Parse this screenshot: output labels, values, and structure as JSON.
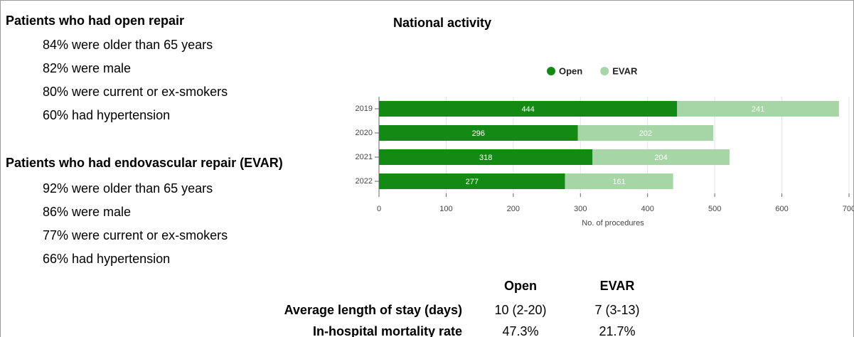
{
  "open_repair": {
    "heading": "Patients who had open repair",
    "items": [
      "84% were older than 65 years",
      "82% were male",
      "80% were current or ex-smokers",
      "60% had hypertension"
    ]
  },
  "evar_repair": {
    "heading": "Patients who had endovascular repair (EVAR)",
    "items": [
      "92% were older than 65 years",
      "86% were male",
      "77% were current or ex-smokers",
      "66% had hypertension"
    ]
  },
  "chart_data": {
    "type": "stacked_barh",
    "title": "National activity",
    "categories": [
      "2019",
      "2020",
      "2021",
      "2022"
    ],
    "series": [
      {
        "name": "Open",
        "color": "#138a13",
        "values": [
          444,
          296,
          318,
          277
        ]
      },
      {
        "name": "EVAR",
        "color": "#a6d5a6",
        "values": [
          241,
          202,
          204,
          161
        ]
      }
    ],
    "xlim": [
      0,
      700
    ],
    "xticks": [
      0,
      100,
      200,
      300,
      400,
      500,
      600,
      700
    ],
    "xlabel": "No. of procedures",
    "grid": true,
    "legend": "top"
  },
  "table": {
    "columns": [
      "Open",
      "EVAR"
    ],
    "rows": [
      {
        "label": "Average length of stay (days)",
        "values": [
          "10 (2-20)",
          "7 (3-13)"
        ]
      },
      {
        "label": "In-hospital mortality rate",
        "values": [
          "47.3%",
          "21.7%"
        ]
      }
    ]
  }
}
